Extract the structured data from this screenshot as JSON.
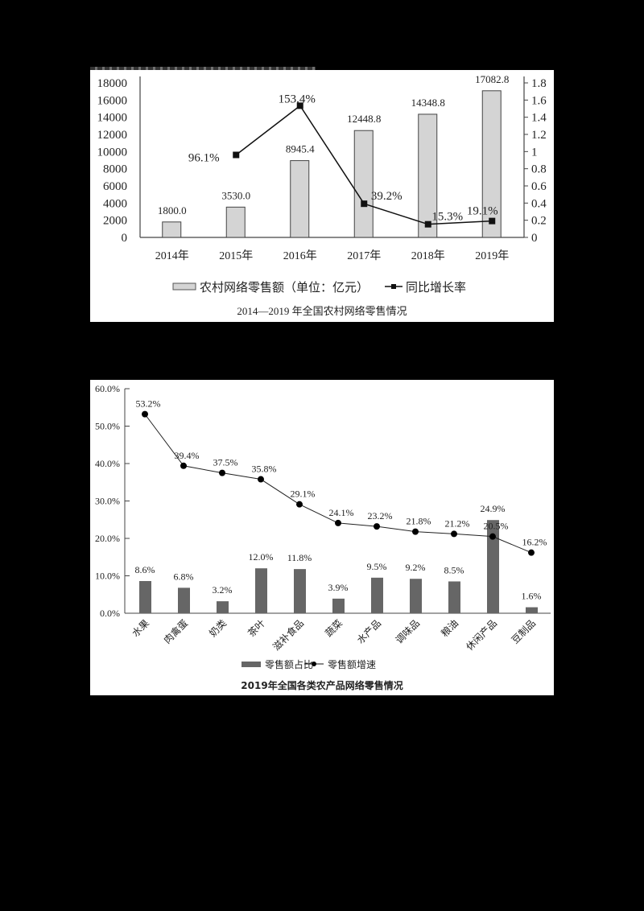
{
  "chart_data": [
    {
      "type": "bar+line",
      "title": "2014—2019 年全国农村网络零售情况",
      "categories": [
        "2014年",
        "2015年",
        "2016年",
        "2017年",
        "2018年",
        "2019年"
      ],
      "series": [
        {
          "name": "农村网络零售额（单位：亿元）",
          "type": "bar",
          "axis": "left",
          "values": [
            1800.0,
            3530.0,
            8945.4,
            12448.8,
            14348.8,
            17082.8
          ],
          "labels": [
            "1800.0",
            "3530.0",
            "8945.4",
            "12448.8",
            "14348.8",
            "17082.8"
          ]
        },
        {
          "name": "同比增长率",
          "type": "line",
          "axis": "right",
          "values": [
            null,
            0.961,
            1.534,
            0.392,
            0.153,
            0.191
          ],
          "labels": [
            "",
            "96.1%",
            "153.4%",
            "39.2%",
            "15.3%",
            "19.1%"
          ]
        }
      ],
      "left_axis": {
        "ylim": [
          0,
          18000
        ],
        "ticks": [
          "0",
          "2000",
          "4000",
          "6000",
          "8000",
          "10000",
          "12000",
          "14000",
          "16000",
          "18000"
        ]
      },
      "right_axis": {
        "ylim": [
          0,
          1.8
        ],
        "ticks": [
          "0",
          "0.2",
          "0.4",
          "0.6",
          "0.8",
          "1",
          "1.2",
          "1.4",
          "1.6",
          "1.8"
        ]
      },
      "legend": [
        "农村网络零售额（单位：亿元）",
        "同比增长率"
      ],
      "legend_position": "bottom",
      "colors": {
        "bar_fill": "#d4d4d4",
        "bar_stroke": "#444444",
        "line": "#111111"
      }
    },
    {
      "type": "bar+line",
      "title": "2019年全国各类农产品网络零售情况",
      "categories": [
        "水果",
        "肉禽蛋",
        "奶类",
        "茶叶",
        "滋补食品",
        "蔬菜",
        "水产品",
        "调味品",
        "粮油",
        "休闲产品",
        "豆制品"
      ],
      "series": [
        {
          "name": "零售额占比",
          "type": "bar",
          "values": [
            8.6,
            6.8,
            3.2,
            12.0,
            11.8,
            3.9,
            9.5,
            9.2,
            8.5,
            24.9,
            1.6
          ],
          "labels": [
            "8.6%",
            "6.8%",
            "3.2%",
            "12.0%",
            "11.8%",
            "3.9%",
            "9.5%",
            "9.2%",
            "8.5%",
            "24.9%",
            "1.6%"
          ]
        },
        {
          "name": "零售额增速",
          "type": "line",
          "values": [
            53.2,
            39.4,
            37.5,
            35.8,
            29.1,
            24.1,
            23.2,
            21.8,
            21.2,
            20.5,
            16.2
          ],
          "labels": [
            "53.2%",
            "39.4%",
            "37.5%",
            "35.8%",
            "29.1%",
            "24.1%",
            "23.2%",
            "21.8%",
            "21.2%",
            "20.5%",
            "16.2%"
          ]
        }
      ],
      "y_axis": {
        "ylim": [
          0,
          60
        ],
        "ticks": [
          "0.0%",
          "10.0%",
          "20.0%",
          "30.0%",
          "40.0%",
          "50.0%",
          "60.0%"
        ]
      },
      "legend": [
        "零售额占比",
        "零售额增速"
      ],
      "legend_position": "bottom",
      "colors": {
        "bar_fill": "#666666",
        "line": "#222222",
        "marker": "#000000"
      }
    }
  ]
}
